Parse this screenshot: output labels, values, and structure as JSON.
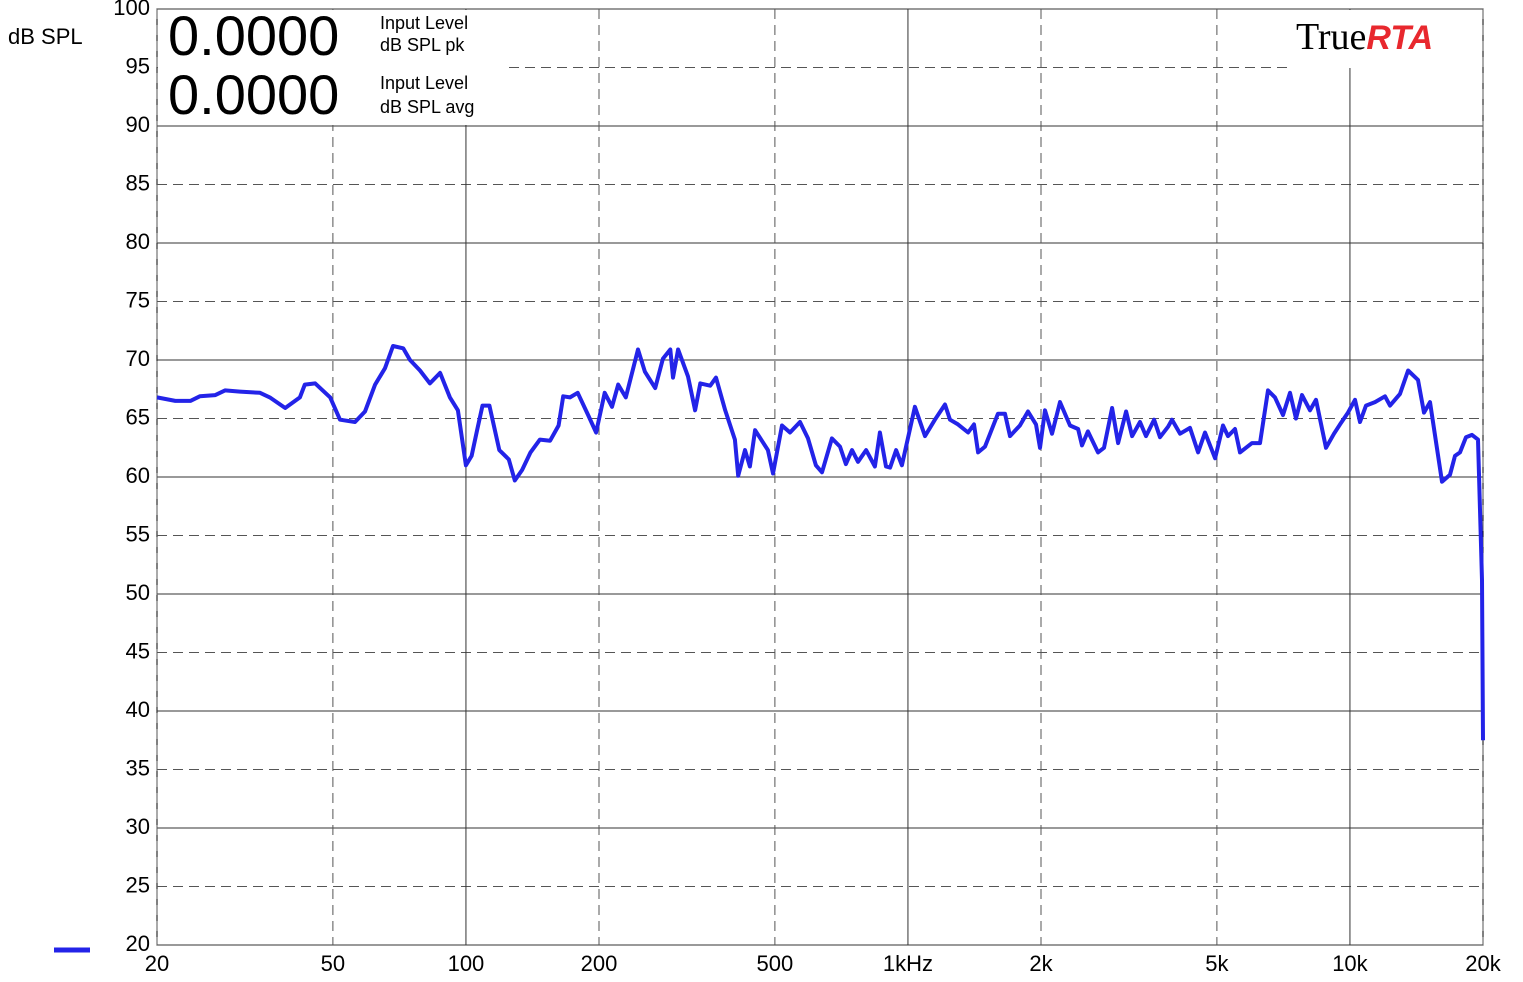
{
  "chart_data": {
    "type": "line",
    "y_label": "dB SPL",
    "readouts": [
      {
        "value": "0.0000",
        "label": [
          "Input Level",
          "dB SPL pk"
        ]
      },
      {
        "value": "0.0000",
        "label": [
          "Input Level",
          "dB SPL avg"
        ]
      }
    ],
    "logo": [
      "True",
      "RTA"
    ],
    "log_x": true,
    "grid": true,
    "xlim": [
      20,
      20000
    ],
    "ylim": [
      20,
      100
    ],
    "xticks": [
      20,
      50,
      100,
      200,
      500,
      {
        "value": 1000,
        "label": "1kHz"
      },
      {
        "value": 2000,
        "label": "2k"
      },
      {
        "value": 5000,
        "label": "5k"
      },
      {
        "value": 10000,
        "label": "10k"
      },
      {
        "value": 20000,
        "label": "20k"
      }
    ],
    "yticks": [
      100,
      95,
      90,
      85,
      80,
      75,
      70,
      65,
      60,
      55,
      50,
      45,
      40,
      35,
      30,
      25,
      20
    ],
    "x": [
      20,
      22.0,
      23.8,
      25.0,
      27.1,
      28.5,
      30.8,
      34.2,
      36.0,
      39.0,
      42.1,
      43.2,
      45.6,
      49.3,
      51.9,
      56.1,
      59.1,
      62.3,
      65.6,
      68.4,
      72.1,
      74.7,
      78.7,
      82.9,
      87.4,
      92.0,
      95.9,
      100,
      103,
      106,
      109,
      113,
      119,
      125,
      129,
      134,
      140,
      147,
      155,
      162,
      166,
      172,
      179,
      189,
      197,
      206,
      214,
      221,
      230,
      245,
      254,
      268,
      279,
      290,
      294,
      302,
      318,
      330,
      339,
      357,
      368,
      386,
      406,
      413,
      428,
      439,
      451,
      482,
      495,
      519,
      541,
      570,
      594,
      619,
      639,
      673,
      702,
      724,
      747,
      771,
      804,
      842,
      864,
      892,
      911,
      940,
      969,
      1037,
      1093,
      1151,
      1213,
      1245,
      1298,
      1368,
      1411,
      1441,
      1494,
      1598,
      1658,
      1702,
      1792,
      1869,
      1949,
      1990,
      2042,
      2118,
      2208,
      2326,
      2426,
      2476,
      2554,
      2692,
      2777,
      2896,
      2988,
      3116,
      3214,
      3350,
      3457,
      3605,
      3718,
      3877,
      3958,
      4127,
      4347,
      4533,
      4700,
      4953,
      5163,
      5298,
      5496,
      5640,
      6004,
      6259,
      6526,
      6768,
      7056,
      7318,
      7550,
      7790,
      8121,
      8380,
      8828,
      9204,
      9497,
      9901,
      10268,
      10540,
      10875,
      11396,
      12006,
      12323,
      12982,
      13536,
      14258,
      14710,
      15178,
      16154,
      16842,
      17288,
      17743,
      18307,
      18890,
      19486,
      19900,
      20000
    ],
    "series": [
      {
        "color": "#2323e8",
        "values": [
          66.8,
          66.5,
          66.5,
          66.9,
          67.0,
          67.4,
          67.3,
          67.2,
          66.8,
          65.9,
          66.8,
          67.9,
          68.0,
          66.8,
          64.9,
          64.7,
          65.6,
          67.9,
          69.3,
          71.2,
          71.0,
          70.0,
          69.1,
          68.0,
          68.9,
          66.8,
          65.7,
          61.0,
          61.8,
          64.0,
          66.1,
          66.1,
          62.3,
          61.5,
          59.7,
          60.6,
          62.1,
          63.2,
          63.1,
          64.4,
          66.9,
          66.8,
          67.2,
          65.3,
          63.8,
          67.2,
          66.0,
          67.9,
          66.8,
          70.9,
          69.0,
          67.6,
          70.1,
          70.9,
          68.5,
          70.9,
          68.6,
          65.7,
          68.0,
          67.8,
          68.5,
          65.7,
          63.2,
          60.1,
          62.3,
          60.9,
          64.0,
          62.3,
          60.3,
          64.4,
          63.8,
          64.7,
          63.3,
          61.0,
          60.4,
          63.3,
          62.6,
          61.1,
          62.3,
          61.3,
          62.3,
          60.9,
          63.8,
          60.9,
          60.8,
          62.3,
          61.0,
          66.0,
          63.5,
          64.9,
          66.2,
          64.9,
          64.5,
          63.8,
          64.5,
          62.1,
          62.6,
          65.4,
          65.4,
          63.5,
          64.4,
          65.6,
          64.5,
          62.5,
          65.7,
          63.7,
          66.4,
          64.4,
          64.1,
          62.7,
          63.9,
          62.1,
          62.5,
          65.9,
          62.9,
          65.6,
          63.5,
          64.7,
          63.5,
          64.9,
          63.4,
          64.3,
          64.9,
          63.7,
          64.2,
          62.1,
          63.8,
          61.6,
          64.4,
          63.5,
          64.1,
          62.1,
          62.9,
          62.9,
          67.4,
          66.8,
          65.3,
          67.2,
          65.0,
          67.0,
          65.7,
          66.6,
          62.5,
          63.7,
          64.5,
          65.5,
          66.6,
          64.7,
          66.1,
          66.4,
          66.9,
          66.1,
          67.1,
          69.1,
          68.3,
          65.5,
          66.4,
          59.6,
          60.2,
          61.8,
          62.1,
          63.4,
          63.6,
          63.2,
          51.2,
          37.5
        ]
      }
    ]
  }
}
